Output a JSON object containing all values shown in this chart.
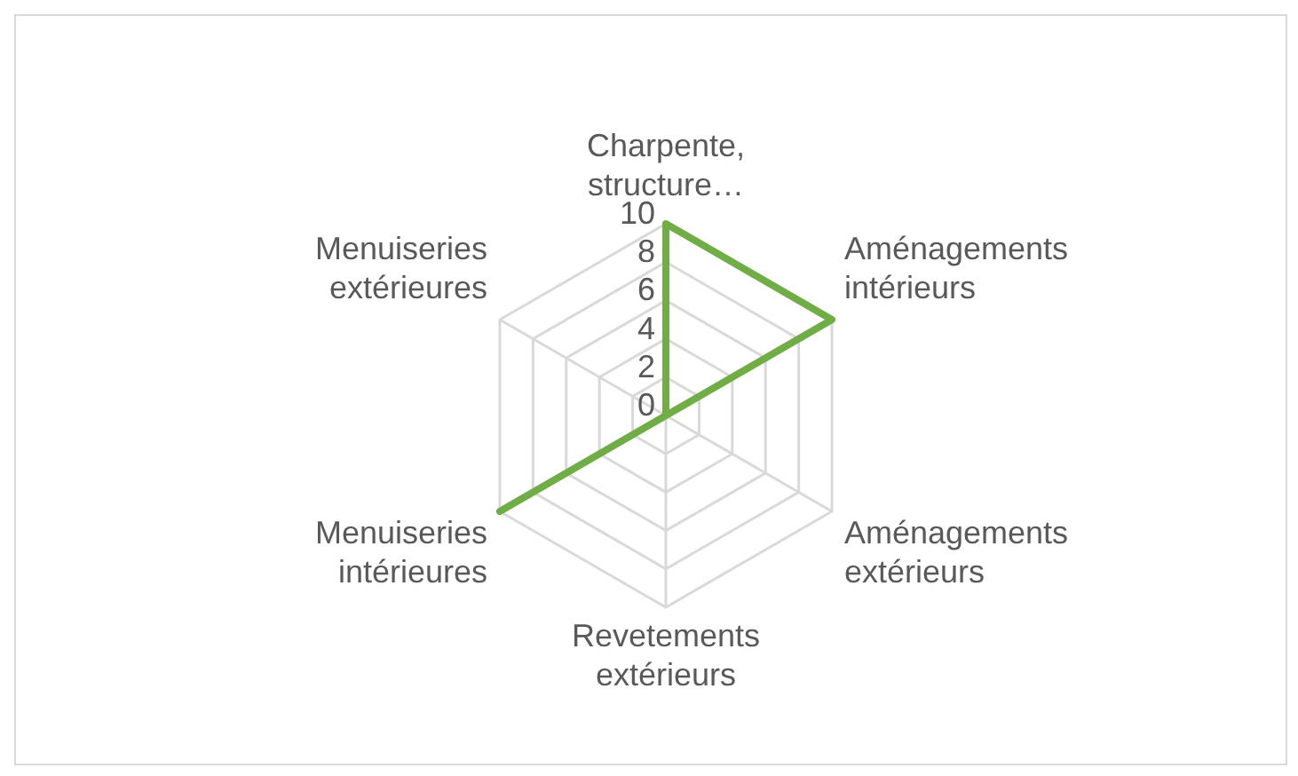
{
  "chart_data": {
    "type": "radar",
    "categories": [
      "Charpente, structure…",
      "Aménagements intérieurs",
      "Aménagements extérieurs",
      "Revetements extérieurs",
      "Menuiseries intérieures",
      "Menuiseries extérieures"
    ],
    "series": [
      {
        "color": "#70ad47",
        "values": [
          10,
          10,
          0,
          0,
          10,
          0
        ]
      }
    ],
    "ylim": [
      0,
      10
    ],
    "yticks": [
      0,
      2,
      4,
      6,
      8,
      10
    ],
    "grid": true,
    "legend": false,
    "marker": "none"
  }
}
